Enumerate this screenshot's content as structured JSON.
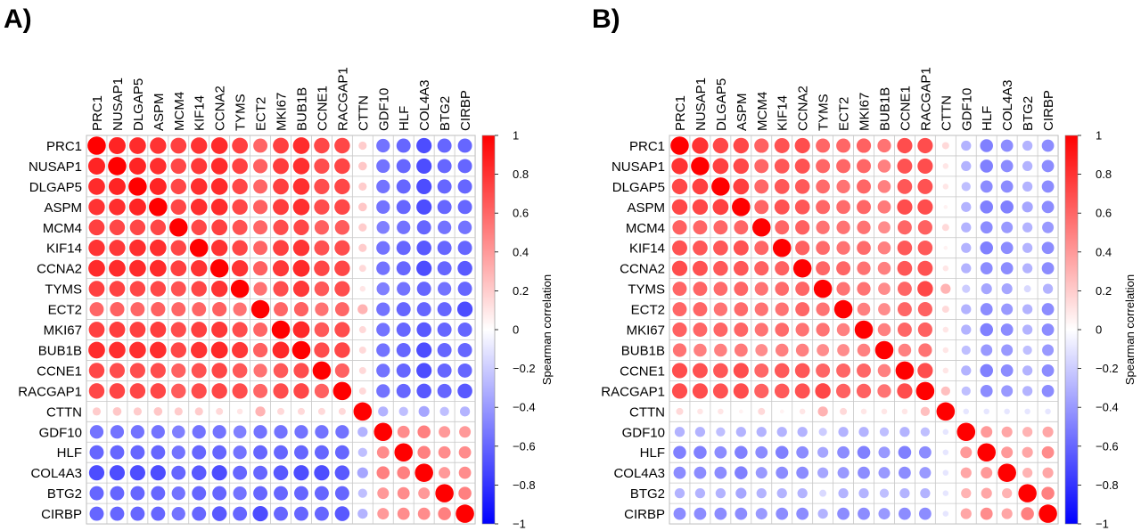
{
  "figure_labels": [
    "A)",
    "B)"
  ],
  "chart_data": [
    {
      "type": "heatmap",
      "panel": "A)",
      "genes": [
        "PRC1",
        "NUSAP1",
        "DLGAP5",
        "ASPM",
        "MCM4",
        "KIF14",
        "CCNA2",
        "TYMS",
        "ECT2",
        "MKI67",
        "BUB1B",
        "CCNE1",
        "RACGAP1",
        "CTTN",
        "GDF10",
        "HLF",
        "COL4A3",
        "BTG2",
        "CIRBP"
      ],
      "colorbar": {
        "label": "Spearman correlation",
        "range": [
          -1,
          1
        ],
        "ticks": [
          1,
          0.8,
          0.6,
          0.4,
          0.2,
          0,
          -0.2,
          -0.4,
          -0.6,
          -0.8,
          -1
        ],
        "low_color": "#0000ff",
        "mid_color": "#ffffff",
        "high_color": "#ff0000"
      },
      "values": [
        [
          1,
          0.86,
          0.83,
          0.8,
          0.75,
          0.8,
          0.83,
          0.75,
          0.6,
          0.75,
          0.83,
          0.72,
          0.72,
          0.2,
          -0.55,
          -0.6,
          -0.7,
          -0.6,
          -0.6
        ],
        [
          0.86,
          1,
          0.86,
          0.82,
          0.72,
          0.78,
          0.83,
          0.74,
          0.62,
          0.76,
          0.82,
          0.7,
          0.73,
          0.22,
          -0.55,
          -0.6,
          -0.7,
          -0.6,
          -0.6
        ],
        [
          0.83,
          0.86,
          1,
          0.86,
          0.72,
          0.82,
          0.83,
          0.72,
          0.6,
          0.75,
          0.82,
          0.7,
          0.72,
          0.2,
          -0.55,
          -0.6,
          -0.7,
          -0.6,
          -0.6
        ],
        [
          0.8,
          0.82,
          0.86,
          1,
          0.72,
          0.82,
          0.83,
          0.72,
          0.62,
          0.76,
          0.82,
          0.7,
          0.72,
          0.22,
          -0.55,
          -0.6,
          -0.7,
          -0.6,
          -0.6
        ],
        [
          0.75,
          0.72,
          0.72,
          0.72,
          1,
          0.72,
          0.75,
          0.68,
          0.6,
          0.7,
          0.72,
          0.62,
          0.64,
          0.2,
          -0.5,
          -0.55,
          -0.6,
          -0.55,
          -0.55
        ],
        [
          0.8,
          0.78,
          0.82,
          0.82,
          0.72,
          1,
          0.8,
          0.72,
          0.6,
          0.75,
          0.8,
          0.68,
          0.7,
          0.2,
          -0.55,
          -0.6,
          -0.65,
          -0.6,
          -0.6
        ],
        [
          0.83,
          0.83,
          0.83,
          0.83,
          0.75,
          0.8,
          1,
          0.8,
          0.62,
          0.78,
          0.84,
          0.72,
          0.72,
          0.15,
          -0.55,
          -0.6,
          -0.7,
          -0.6,
          -0.65
        ],
        [
          0.75,
          0.74,
          0.72,
          0.72,
          0.68,
          0.72,
          0.8,
          1,
          0.55,
          0.7,
          0.78,
          0.65,
          0.7,
          0.1,
          -0.5,
          -0.55,
          -0.6,
          -0.55,
          -0.6
        ],
        [
          0.6,
          0.62,
          0.6,
          0.62,
          0.6,
          0.6,
          0.62,
          0.55,
          1,
          0.6,
          0.62,
          0.55,
          0.6,
          0.3,
          -0.55,
          -0.6,
          -0.6,
          -0.6,
          -0.7
        ],
        [
          0.75,
          0.76,
          0.75,
          0.76,
          0.7,
          0.75,
          0.78,
          0.7,
          0.6,
          1,
          0.84,
          0.65,
          0.7,
          0.15,
          -0.55,
          -0.6,
          -0.65,
          -0.6,
          -0.6
        ],
        [
          0.83,
          0.82,
          0.82,
          0.82,
          0.72,
          0.8,
          0.84,
          0.78,
          0.62,
          0.84,
          1,
          0.7,
          0.72,
          0.15,
          -0.55,
          -0.6,
          -0.7,
          -0.6,
          -0.6
        ],
        [
          0.72,
          0.7,
          0.7,
          0.7,
          0.62,
          0.68,
          0.72,
          0.65,
          0.55,
          0.65,
          0.7,
          1,
          0.62,
          0.15,
          -0.55,
          -0.6,
          -0.7,
          -0.6,
          -0.6
        ],
        [
          0.72,
          0.73,
          0.72,
          0.72,
          0.64,
          0.7,
          0.72,
          0.7,
          0.6,
          0.7,
          0.72,
          0.62,
          1,
          0.15,
          -0.55,
          -0.6,
          -0.65,
          -0.6,
          -0.65
        ],
        [
          0.2,
          0.22,
          0.2,
          0.22,
          0.2,
          0.2,
          0.15,
          0.1,
          0.3,
          0.15,
          0.15,
          0.15,
          0.15,
          1,
          -0.3,
          -0.25,
          -0.35,
          -0.25,
          -0.3
        ],
        [
          -0.55,
          -0.55,
          -0.55,
          -0.55,
          -0.5,
          -0.55,
          -0.55,
          -0.5,
          -0.55,
          -0.55,
          -0.55,
          -0.55,
          -0.55,
          -0.3,
          1,
          0.45,
          0.5,
          0.4,
          0.4
        ],
        [
          -0.6,
          -0.6,
          -0.6,
          -0.6,
          -0.55,
          -0.6,
          -0.6,
          -0.55,
          -0.6,
          -0.6,
          -0.6,
          -0.6,
          -0.6,
          -0.25,
          0.45,
          1,
          0.5,
          0.45,
          0.45
        ],
        [
          -0.7,
          -0.7,
          -0.7,
          -0.7,
          -0.6,
          -0.65,
          -0.7,
          -0.6,
          -0.6,
          -0.65,
          -0.7,
          -0.7,
          -0.65,
          -0.35,
          0.5,
          0.5,
          1,
          0.4,
          0.45
        ],
        [
          -0.6,
          -0.6,
          -0.6,
          -0.6,
          -0.55,
          -0.6,
          -0.6,
          -0.55,
          -0.6,
          -0.6,
          -0.6,
          -0.6,
          -0.6,
          -0.25,
          0.4,
          0.45,
          0.4,
          1,
          0.5
        ],
        [
          -0.6,
          -0.6,
          -0.6,
          -0.6,
          -0.55,
          -0.6,
          -0.65,
          -0.6,
          -0.7,
          -0.6,
          -0.6,
          -0.6,
          -0.65,
          -0.3,
          0.4,
          0.45,
          0.45,
          0.5,
          1
        ]
      ]
    },
    {
      "type": "heatmap",
      "panel": "B)",
      "genes": [
        "PRC1",
        "NUSAP1",
        "DLGAP5",
        "ASPM",
        "MCM4",
        "KIF14",
        "CCNA2",
        "TYMS",
        "ECT2",
        "MKI67",
        "BUB1B",
        "CCNE1",
        "RACGAP1",
        "CTTN",
        "GDF10",
        "HLF",
        "COL4A3",
        "BTG2",
        "CIRBP"
      ],
      "colorbar": {
        "label": "Spearman correlation",
        "range": [
          -1,
          1
        ],
        "ticks": [
          1,
          0.8,
          0.6,
          0.4,
          0.2,
          0,
          -0.2,
          -0.4,
          -0.6,
          -0.8,
          -1
        ],
        "low_color": "#0000ff",
        "mid_color": "#ffffff",
        "high_color": "#ff0000"
      },
      "values": [
        [
          1,
          0.8,
          0.72,
          0.72,
          0.62,
          0.68,
          0.7,
          0.6,
          0.6,
          0.62,
          0.55,
          0.7,
          0.7,
          0.15,
          -0.3,
          -0.5,
          -0.45,
          -0.3,
          -0.45
        ],
        [
          0.8,
          1,
          0.75,
          0.72,
          0.6,
          0.66,
          0.68,
          0.6,
          0.6,
          0.6,
          0.5,
          0.68,
          0.7,
          0.1,
          -0.3,
          -0.5,
          -0.45,
          -0.3,
          -0.45
        ],
        [
          0.72,
          0.75,
          1,
          0.75,
          0.6,
          0.66,
          0.65,
          0.58,
          0.55,
          0.6,
          0.5,
          0.66,
          0.68,
          0.1,
          -0.25,
          -0.45,
          -0.45,
          -0.3,
          -0.45
        ],
        [
          0.72,
          0.72,
          0.75,
          1,
          0.6,
          0.68,
          0.66,
          0.6,
          0.58,
          0.6,
          0.52,
          0.7,
          0.7,
          0.05,
          -0.3,
          -0.5,
          -0.5,
          -0.35,
          -0.45
        ],
        [
          0.62,
          0.6,
          0.6,
          0.6,
          1,
          0.6,
          0.62,
          0.55,
          0.55,
          0.55,
          0.45,
          0.6,
          0.62,
          0.15,
          -0.3,
          -0.45,
          -0.4,
          -0.3,
          -0.4
        ],
        [
          0.68,
          0.66,
          0.66,
          0.68,
          0.6,
          1,
          0.62,
          0.58,
          0.55,
          0.58,
          0.5,
          0.65,
          0.65,
          0.05,
          -0.3,
          -0.5,
          -0.45,
          -0.3,
          -0.45
        ],
        [
          0.7,
          0.68,
          0.65,
          0.66,
          0.62,
          0.62,
          1,
          0.6,
          0.6,
          0.55,
          0.5,
          0.66,
          0.68,
          0.1,
          -0.3,
          -0.45,
          -0.45,
          -0.3,
          -0.45
        ],
        [
          0.6,
          0.6,
          0.58,
          0.6,
          0.55,
          0.58,
          0.6,
          1,
          0.55,
          0.55,
          0.45,
          0.6,
          0.72,
          0.3,
          -0.2,
          -0.35,
          -0.35,
          -0.15,
          -0.3
        ],
        [
          0.6,
          0.6,
          0.55,
          0.58,
          0.55,
          0.55,
          0.6,
          0.55,
          1,
          0.5,
          0.45,
          0.6,
          0.62,
          0.15,
          -0.3,
          -0.45,
          -0.4,
          -0.3,
          -0.45
        ],
        [
          0.62,
          0.6,
          0.6,
          0.6,
          0.55,
          0.58,
          0.55,
          0.55,
          0.5,
          1,
          0.5,
          0.6,
          0.62,
          0.1,
          -0.3,
          -0.5,
          -0.45,
          -0.3,
          -0.45
        ],
        [
          0.55,
          0.5,
          0.5,
          0.52,
          0.45,
          0.5,
          0.5,
          0.45,
          0.45,
          0.5,
          1,
          0.5,
          0.55,
          0.1,
          -0.25,
          -0.4,
          -0.4,
          -0.25,
          -0.4
        ],
        [
          0.7,
          0.68,
          0.66,
          0.7,
          0.6,
          0.65,
          0.66,
          0.6,
          0.6,
          0.6,
          0.5,
          1,
          0.7,
          0.1,
          -0.3,
          -0.5,
          -0.45,
          -0.3,
          -0.45
        ],
        [
          0.7,
          0.7,
          0.68,
          0.7,
          0.62,
          0.65,
          0.68,
          0.72,
          0.62,
          0.62,
          0.55,
          0.7,
          1,
          0.25,
          -0.25,
          -0.45,
          -0.4,
          -0.3,
          -0.45
        ],
        [
          0.15,
          0.1,
          0.1,
          0.05,
          0.15,
          0.05,
          0.1,
          0.3,
          0.15,
          0.1,
          0.1,
          0.1,
          0.25,
          1,
          -0.1,
          -0.1,
          -0.1,
          -0.1,
          -0.1
        ],
        [
          -0.3,
          -0.3,
          -0.25,
          -0.3,
          -0.3,
          -0.3,
          -0.3,
          -0.2,
          -0.3,
          -0.3,
          -0.25,
          -0.3,
          -0.25,
          -0.1,
          1,
          0.4,
          0.35,
          0.3,
          0.35
        ],
        [
          -0.5,
          -0.5,
          -0.45,
          -0.5,
          -0.45,
          -0.5,
          -0.45,
          -0.35,
          -0.45,
          -0.5,
          -0.4,
          -0.5,
          -0.45,
          -0.1,
          0.4,
          1,
          0.4,
          0.35,
          0.45
        ],
        [
          -0.45,
          -0.45,
          -0.45,
          -0.5,
          -0.4,
          -0.45,
          -0.45,
          -0.35,
          -0.4,
          -0.45,
          -0.4,
          -0.45,
          -0.4,
          -0.1,
          0.35,
          0.4,
          1,
          0.3,
          0.35
        ],
        [
          -0.3,
          -0.3,
          -0.3,
          -0.35,
          -0.3,
          -0.3,
          -0.3,
          -0.15,
          -0.3,
          -0.3,
          -0.25,
          -0.3,
          -0.3,
          -0.1,
          0.3,
          0.35,
          0.3,
          1,
          0.5
        ],
        [
          -0.45,
          -0.45,
          -0.45,
          -0.45,
          -0.4,
          -0.45,
          -0.45,
          -0.3,
          -0.45,
          -0.45,
          -0.4,
          -0.45,
          -0.45,
          -0.1,
          0.35,
          0.45,
          0.35,
          0.5,
          1
        ]
      ]
    }
  ]
}
